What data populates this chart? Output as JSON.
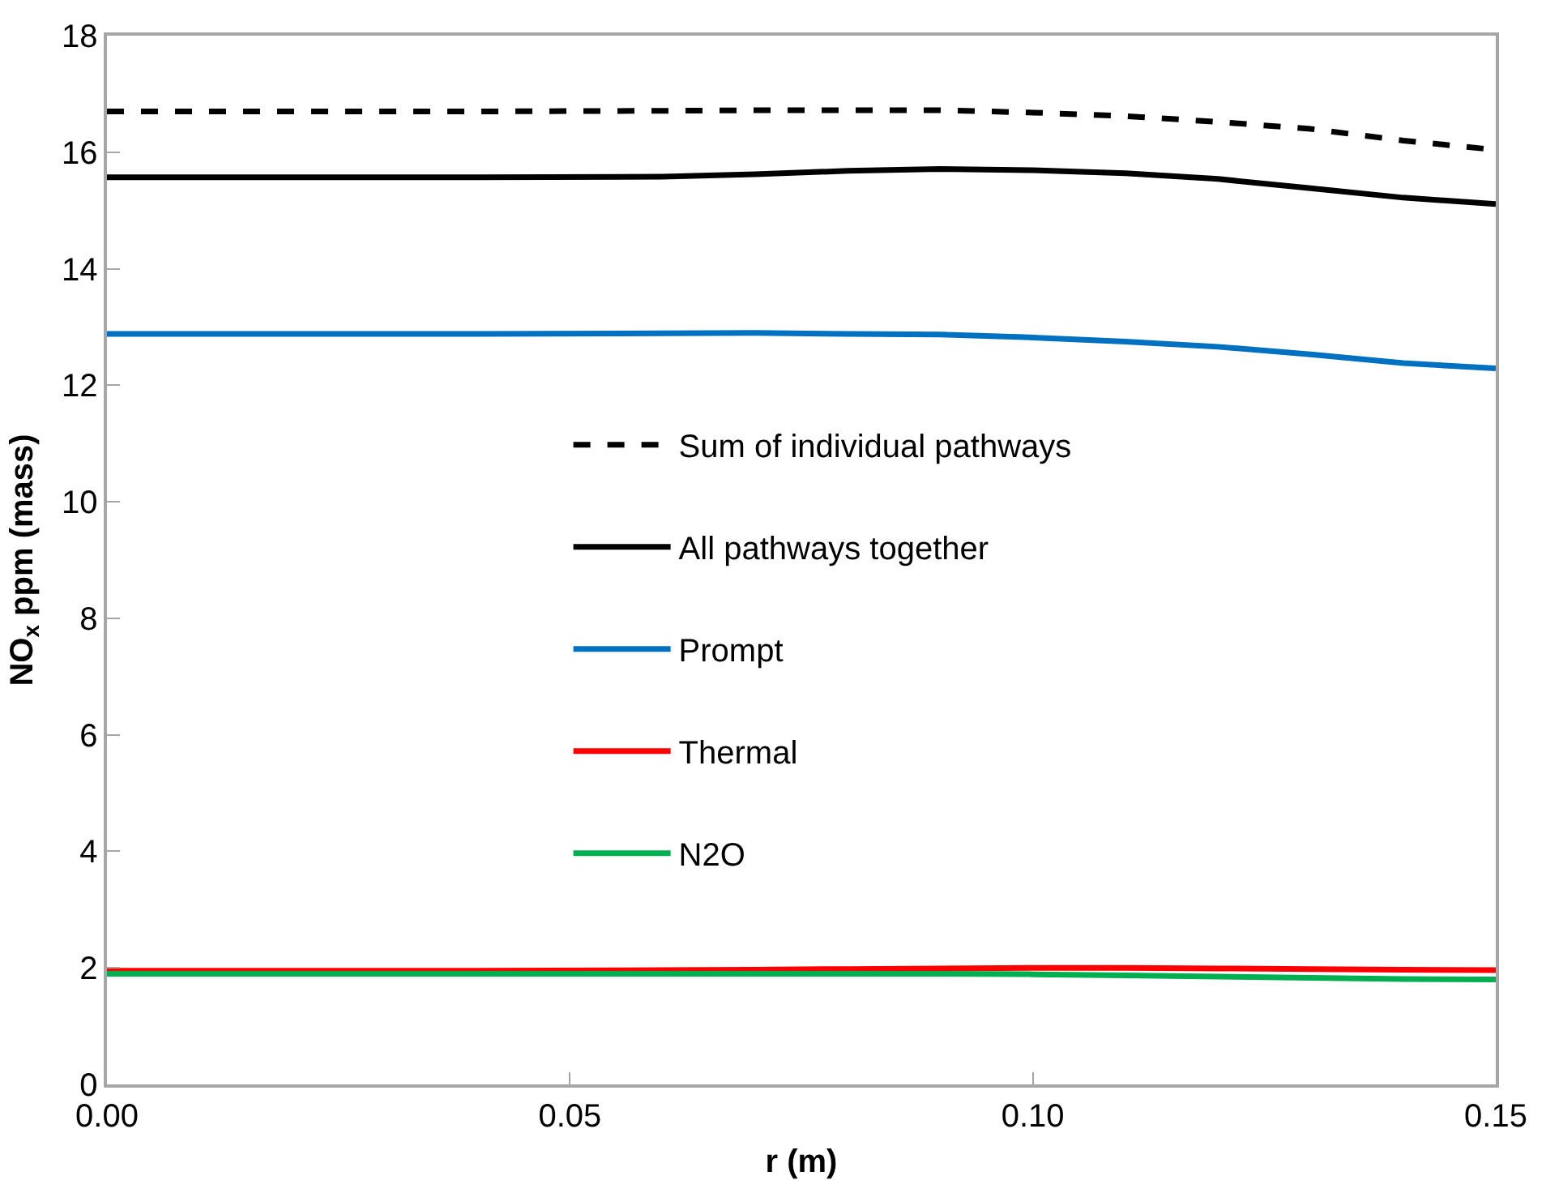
{
  "chart_data": {
    "type": "line",
    "xlabel": "r (m)",
    "ylabel": "NO$_{x}$ ppm (mass)",
    "x": [
      0,
      0.02,
      0.04,
      0.06,
      0.07,
      0.08,
      0.09,
      0.1,
      0.11,
      0.12,
      0.13,
      0.14,
      0.15
    ],
    "xlim": [
      0,
      0.15
    ],
    "xticks": [
      {
        "value": 0,
        "label": "0.00"
      },
      {
        "value": 0.05,
        "label": "0.05"
      },
      {
        "value": 0.1,
        "label": "0.10"
      },
      {
        "value": 0.15,
        "label": "0.15"
      }
    ],
    "ylim": [
      0,
      18
    ],
    "yticks": [
      0,
      2,
      4,
      6,
      8,
      10,
      12,
      14,
      16,
      18
    ],
    "grid": false,
    "legend": "center",
    "marker": "none",
    "series": [
      {
        "name": "Sum of individual pathways",
        "color": "#000000",
        "line_style": "dashed",
        "values": [
          16.7,
          16.7,
          16.7,
          16.71,
          16.72,
          16.72,
          16.72,
          16.68,
          16.62,
          16.52,
          16.4,
          16.2,
          16.04
        ]
      },
      {
        "name": "All pathways together",
        "color": "#000000",
        "line_style": "solid",
        "values": [
          15.57,
          15.57,
          15.57,
          15.58,
          15.62,
          15.68,
          15.71,
          15.69,
          15.64,
          15.54,
          15.38,
          15.22,
          15.11
        ]
      },
      {
        "name": "Prompt",
        "color": "#0070c0",
        "line_style": "solid",
        "values": [
          12.88,
          12.88,
          12.88,
          12.89,
          12.9,
          12.88,
          12.87,
          12.82,
          12.75,
          12.66,
          12.53,
          12.38,
          12.29
        ]
      },
      {
        "name": "Thermal",
        "color": "#ff0000",
        "line_style": "solid",
        "values": [
          1.95,
          1.95,
          1.95,
          1.96,
          1.97,
          1.98,
          1.99,
          2.0,
          2.0,
          1.99,
          1.98,
          1.97,
          1.96
        ]
      },
      {
        "name": "N2O",
        "color": "#00b050",
        "line_style": "solid",
        "values": [
          1.9,
          1.9,
          1.9,
          1.9,
          1.9,
          1.9,
          1.9,
          1.89,
          1.87,
          1.85,
          1.83,
          1.81,
          1.8
        ]
      }
    ]
  }
}
